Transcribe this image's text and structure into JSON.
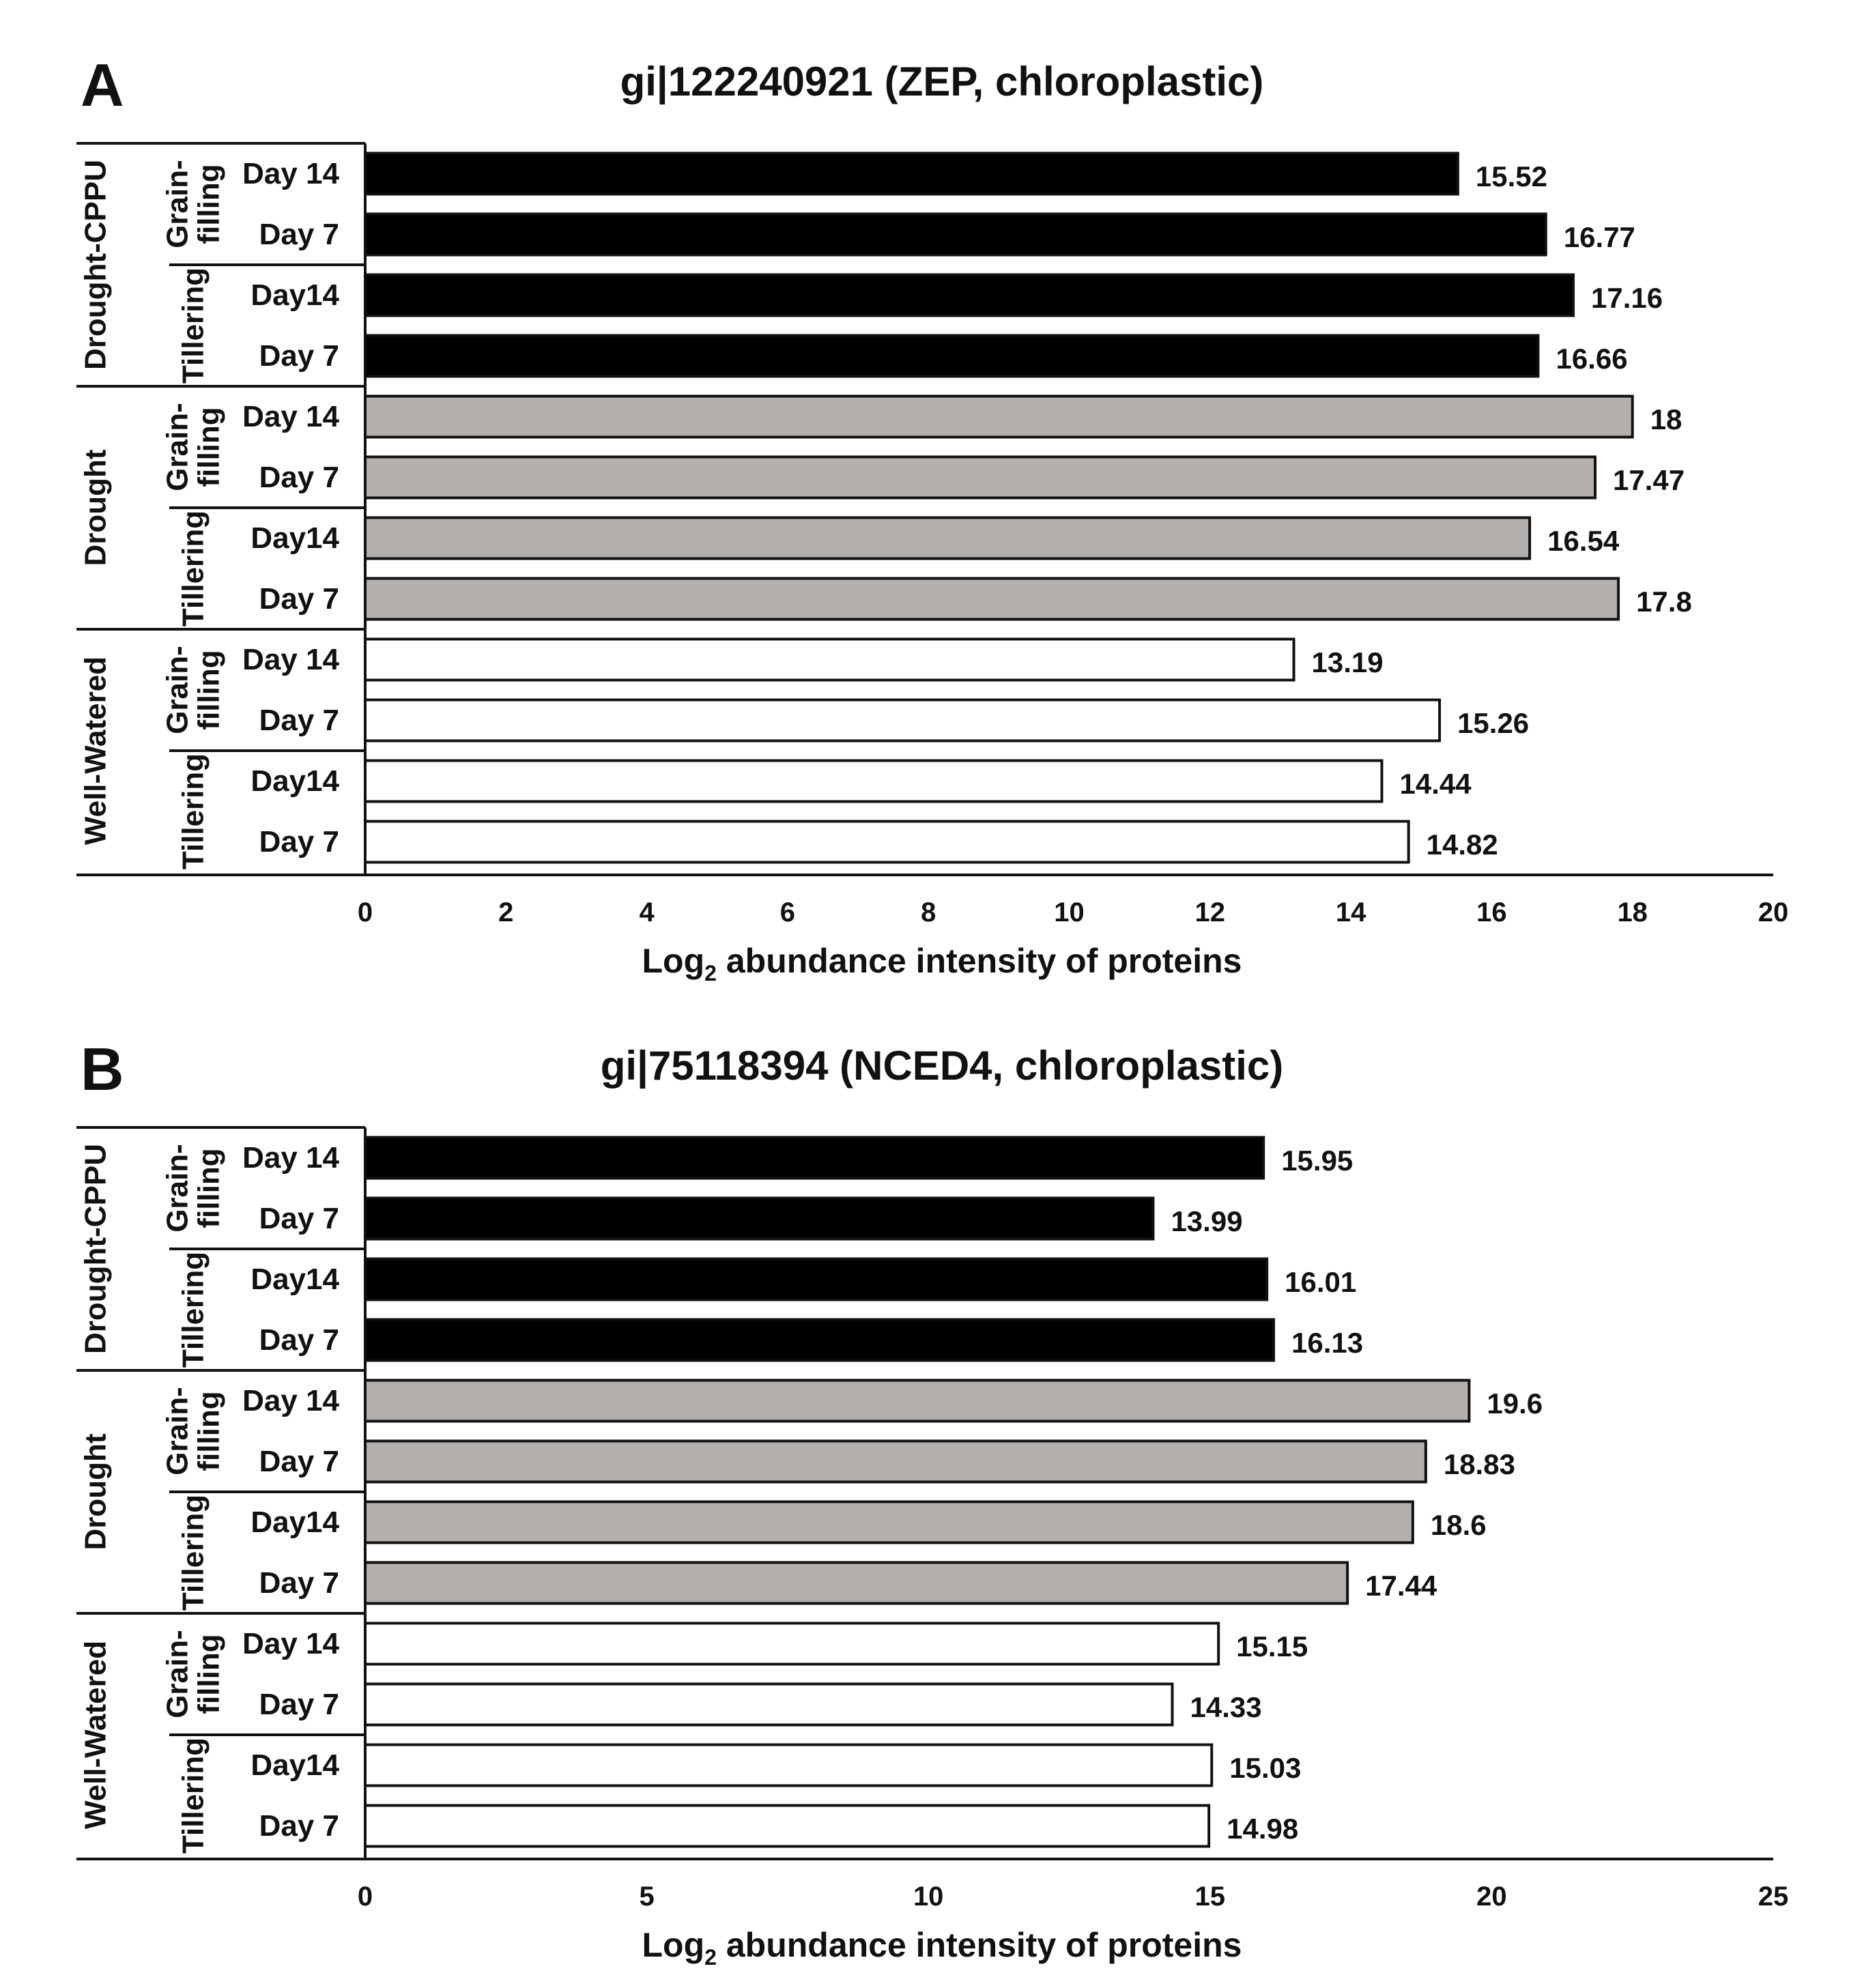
{
  "colors": {
    "Drought-CPPU": "#000000",
    "Drought": "#b3afad",
    "Well-Watered": "#ffffff",
    "outline": "#111111"
  },
  "chart_data": [
    {
      "panel": "A",
      "type": "bar",
      "orientation": "horizontal",
      "title": "gi|122240921 (ZEP, chloroplastic)",
      "xlabel": "Log2 abundance intensity of proteins",
      "xlabel_main": "Log",
      "xlabel_sub": "2",
      "xlabel_rest": " abundance intensity of proteins",
      "xlim": [
        0,
        20
      ],
      "xticks": [
        0,
        2,
        4,
        6,
        8,
        10,
        12,
        14,
        16,
        18,
        20
      ],
      "xtick_labels": [
        "0",
        "2",
        "4",
        "6",
        "8",
        "10",
        "12",
        "14",
        "16",
        "18",
        "20"
      ],
      "groups": [
        {
          "treatment": "Drought-CPPU",
          "stages": [
            {
              "stage": "Grain-filling",
              "stage_lines": [
                "Grain-",
                "filling"
              ],
              "bars": [
                {
                  "day": "Day 14",
                  "value": 15.52,
                  "label": "15.52"
                },
                {
                  "day": "Day 7",
                  "value": 16.77,
                  "label": "16.77"
                }
              ]
            },
            {
              "stage": "Tillering",
              "stage_lines": [
                "Tillering"
              ],
              "bars": [
                {
                  "day": "Day14",
                  "value": 17.16,
                  "label": "17.16"
                },
                {
                  "day": "Day 7",
                  "value": 16.66,
                  "label": "16.66"
                }
              ]
            }
          ]
        },
        {
          "treatment": "Drought",
          "stages": [
            {
              "stage": "Grain-filling",
              "stage_lines": [
                "Grain-",
                "filling"
              ],
              "bars": [
                {
                  "day": "Day 14",
                  "value": 18,
                  "label": "18"
                },
                {
                  "day": "Day 7",
                  "value": 17.47,
                  "label": "17.47"
                }
              ]
            },
            {
              "stage": "Tillering",
              "stage_lines": [
                "Tillering"
              ],
              "bars": [
                {
                  "day": "Day14",
                  "value": 16.54,
                  "label": "16.54"
                },
                {
                  "day": "Day 7",
                  "value": 17.8,
                  "label": "17.8"
                }
              ]
            }
          ]
        },
        {
          "treatment": "Well-Watered",
          "stages": [
            {
              "stage": "Grain-filling",
              "stage_lines": [
                "Grain-",
                "filling"
              ],
              "bars": [
                {
                  "day": "Day 14",
                  "value": 13.19,
                  "label": "13.19"
                },
                {
                  "day": "Day 7",
                  "value": 15.26,
                  "label": "15.26"
                }
              ]
            },
            {
              "stage": "Tillering",
              "stage_lines": [
                "Tillering"
              ],
              "bars": [
                {
                  "day": "Day14",
                  "value": 14.44,
                  "label": "14.44"
                },
                {
                  "day": "Day 7",
                  "value": 14.82,
                  "label": "14.82"
                }
              ]
            }
          ]
        }
      ]
    },
    {
      "panel": "B",
      "type": "bar",
      "orientation": "horizontal",
      "title": "gi|75118394 (NCED4, chloroplastic)",
      "xlabel": "Log2 abundance intensity of proteins",
      "xlabel_main": "Log",
      "xlabel_sub": "2",
      "xlabel_rest": " abundance intensity of proteins",
      "xlim": [
        0,
        25
      ],
      "xticks": [
        0,
        5,
        10,
        15,
        20,
        25
      ],
      "xtick_labels": [
        "0",
        "5",
        "10",
        "15",
        "20",
        "25"
      ],
      "groups": [
        {
          "treatment": "Drought-CPPU",
          "stages": [
            {
              "stage": "Grain-filling",
              "stage_lines": [
                "Grain-",
                "filling"
              ],
              "bars": [
                {
                  "day": "Day 14",
                  "value": 15.95,
                  "label": "15.95"
                },
                {
                  "day": "Day 7",
                  "value": 13.99,
                  "label": "13.99"
                }
              ]
            },
            {
              "stage": "Tillering",
              "stage_lines": [
                "Tillering"
              ],
              "bars": [
                {
                  "day": "Day14",
                  "value": 16.01,
                  "label": "16.01"
                },
                {
                  "day": "Day 7",
                  "value": 16.13,
                  "label": "16.13"
                }
              ]
            }
          ]
        },
        {
          "treatment": "Drought",
          "stages": [
            {
              "stage": "Grain-filling",
              "stage_lines": [
                "Grain-",
                "filling"
              ],
              "bars": [
                {
                  "day": "Day 14",
                  "value": 19.6,
                  "label": "19.6"
                },
                {
                  "day": "Day 7",
                  "value": 18.83,
                  "label": "18.83"
                }
              ]
            },
            {
              "stage": "Tillering",
              "stage_lines": [
                "Tillering"
              ],
              "bars": [
                {
                  "day": "Day14",
                  "value": 18.6,
                  "label": "18.6"
                },
                {
                  "day": "Day 7",
                  "value": 17.44,
                  "label": "17.44"
                }
              ]
            }
          ]
        },
        {
          "treatment": "Well-Watered",
          "stages": [
            {
              "stage": "Grain-filling",
              "stage_lines": [
                "Grain-",
                "filling"
              ],
              "bars": [
                {
                  "day": "Day 14",
                  "value": 15.15,
                  "label": "15.15"
                },
                {
                  "day": "Day 7",
                  "value": 14.33,
                  "label": "14.33"
                }
              ]
            },
            {
              "stage": "Tillering",
              "stage_lines": [
                "Tillering"
              ],
              "bars": [
                {
                  "day": "Day14",
                  "value": 15.03,
                  "label": "15.03"
                },
                {
                  "day": "Day 7",
                  "value": 14.98,
                  "label": "14.98"
                }
              ]
            }
          ]
        }
      ]
    }
  ]
}
